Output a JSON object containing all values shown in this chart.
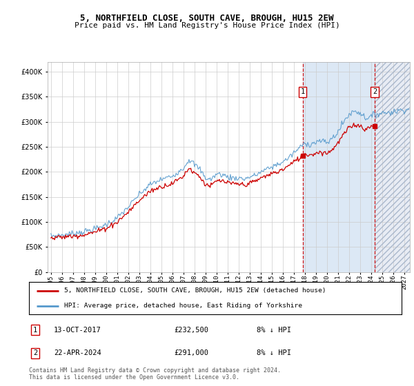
{
  "title": "5, NORTHFIELD CLOSE, SOUTH CAVE, BROUGH, HU15 2EW",
  "subtitle": "Price paid vs. HM Land Registry's House Price Index (HPI)",
  "legend_line1": "5, NORTHFIELD CLOSE, SOUTH CAVE, BROUGH, HU15 2EW (detached house)",
  "legend_line2": "HPI: Average price, detached house, East Riding of Yorkshire",
  "footnote1": "Contains HM Land Registry data © Crown copyright and database right 2024.",
  "footnote2": "This data is licensed under the Open Government Licence v3.0.",
  "transaction1_date": "13-OCT-2017",
  "transaction1_price": "£232,500",
  "transaction1_hpi": "8% ↓ HPI",
  "transaction2_date": "22-APR-2024",
  "transaction2_price": "£291,000",
  "transaction2_hpi": "8% ↓ HPI",
  "transaction1_x": 2017.79,
  "transaction1_y": 232500,
  "transaction2_x": 2024.31,
  "transaction2_y": 291000,
  "hpi_color": "#5599cc",
  "price_color": "#cc0000",
  "shade_color": "#dce8f5",
  "hatch_color": "#d0d8e8",
  "ylim": [
    0,
    420000
  ],
  "xlim_start": 1994.7,
  "xlim_end": 2027.5,
  "shade_start": 2017.79,
  "future_start": 2024.31,
  "gridcolor": "#cccccc",
  "tick_years": [
    1995,
    1996,
    1997,
    1998,
    1999,
    2000,
    2001,
    2002,
    2003,
    2004,
    2005,
    2006,
    2007,
    2008,
    2009,
    2010,
    2011,
    2012,
    2013,
    2014,
    2015,
    2016,
    2017,
    2018,
    2019,
    2020,
    2021,
    2022,
    2023,
    2024,
    2025,
    2026,
    2027
  ]
}
